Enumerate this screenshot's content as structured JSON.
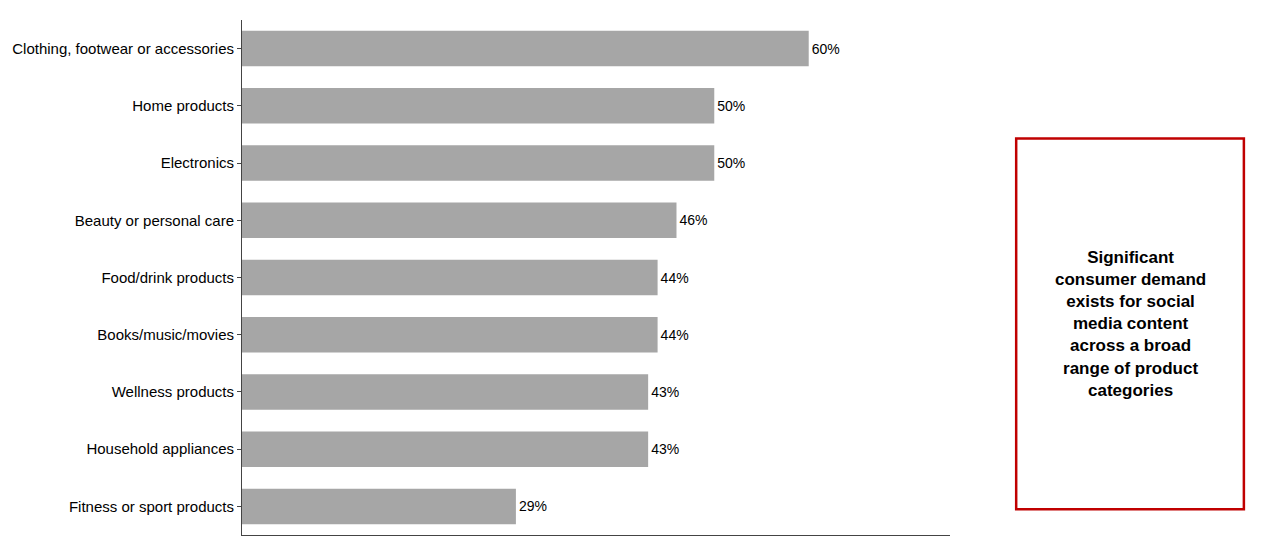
{
  "chart_data": {
    "type": "bar",
    "orientation": "horizontal",
    "categories": [
      "Fitness or sport products",
      "Household appliances",
      "Wellness products",
      "Books/music/movies",
      "Food/drink products",
      "Beauty or personal care",
      "Electronics",
      "Home products",
      "Clothing, footwear or accessories"
    ],
    "values": [
      29,
      43,
      43,
      44,
      44,
      46,
      50,
      50,
      60
    ],
    "value_labels": [
      "29%",
      "43%",
      "43%",
      "44%",
      "44%",
      "46%",
      "50%",
      "50%",
      "60%"
    ],
    "data_labels": true,
    "color": "#a6a6a6",
    "xlim": [
      0,
      75
    ],
    "tick_labels": "y",
    "grid": false,
    "annotations": [
      {
        "text": "Significant\nconsumer demand\nexists for social\nmedia content\nacross a broad\nrange of product\ncategories",
        "color": "#c00000"
      }
    ]
  }
}
